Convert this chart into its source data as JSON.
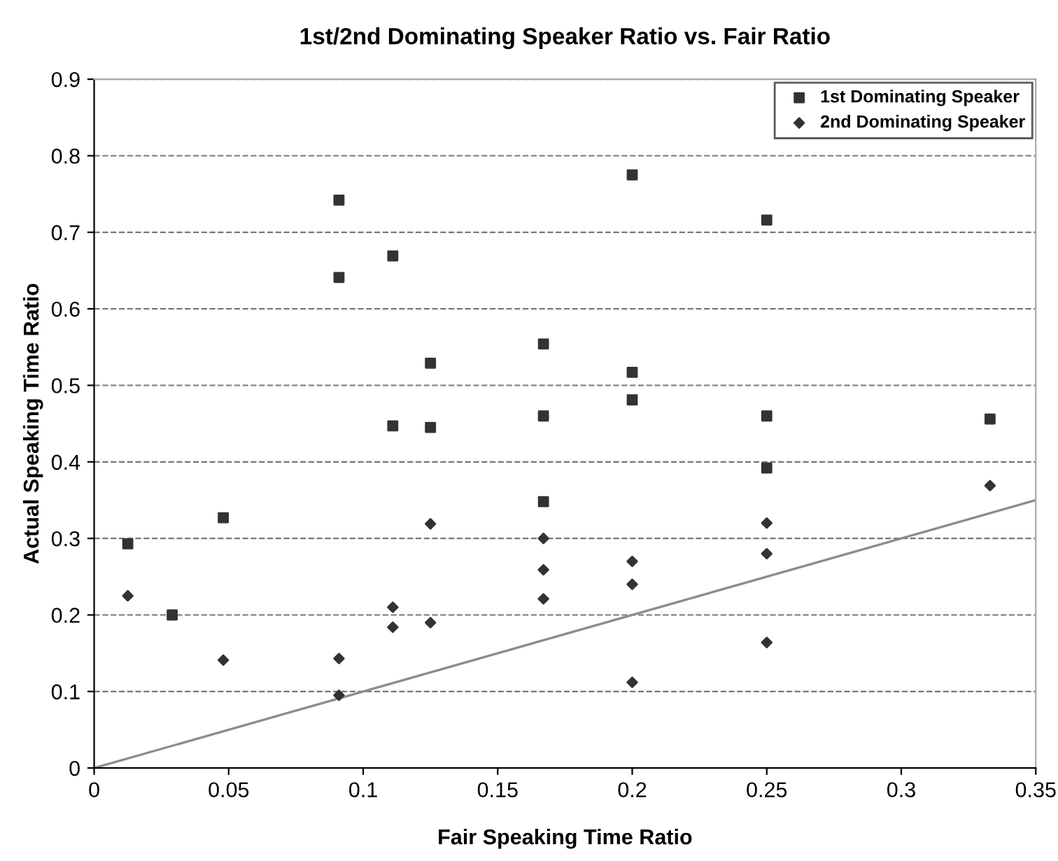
{
  "chart_data": {
    "type": "scatter",
    "title": "1st/2nd Dominating Speaker Ratio vs. Fair Ratio",
    "xlabel": "Fair Speaking Time Ratio",
    "ylabel": "Actual Speaking Time Ratio",
    "xlim": [
      0,
      0.35
    ],
    "ylim": [
      0,
      0.9
    ],
    "xticks": [
      0,
      0.05,
      0.1,
      0.15,
      0.2,
      0.25,
      0.3,
      0.35
    ],
    "yticks": [
      0,
      0.1,
      0.2,
      0.3,
      0.4,
      0.5,
      0.6,
      0.7,
      0.8,
      0.9
    ],
    "grid": "y",
    "legend": "top right",
    "series": [
      {
        "name": "1st Dominating Speaker",
        "color": "#333333",
        "marker": "square",
        "x": [
          0.0125,
          0.029,
          0.048,
          0.091,
          0.091,
          0.111,
          0.111,
          0.125,
          0.125,
          0.167,
          0.167,
          0.167,
          0.2,
          0.2,
          0.2,
          0.25,
          0.25,
          0.25,
          0.333
        ],
        "values": [
          0.293,
          0.2,
          0.327,
          0.742,
          0.641,
          0.669,
          0.447,
          0.529,
          0.445,
          0.554,
          0.46,
          0.348,
          0.775,
          0.517,
          0.481,
          0.716,
          0.46,
          0.392,
          0.456
        ]
      },
      {
        "name": "2nd Dominating Speaker",
        "color": "#333333",
        "marker": "diamond",
        "x": [
          0.0125,
          0.048,
          0.091,
          0.091,
          0.111,
          0.111,
          0.125,
          0.125,
          0.167,
          0.167,
          0.167,
          0.2,
          0.2,
          0.2,
          0.25,
          0.25,
          0.25,
          0.333
        ],
        "values": [
          0.225,
          0.141,
          0.143,
          0.095,
          0.21,
          0.184,
          0.319,
          0.19,
          0.3,
          0.259,
          0.221,
          0.27,
          0.24,
          0.112,
          0.32,
          0.28,
          0.164,
          0.369
        ]
      },
      {
        "type": "line",
        "color": "#8c8c8c",
        "marker": "none",
        "x": [
          0,
          0.35
        ],
        "values": [
          0,
          0.35
        ]
      }
    ]
  }
}
